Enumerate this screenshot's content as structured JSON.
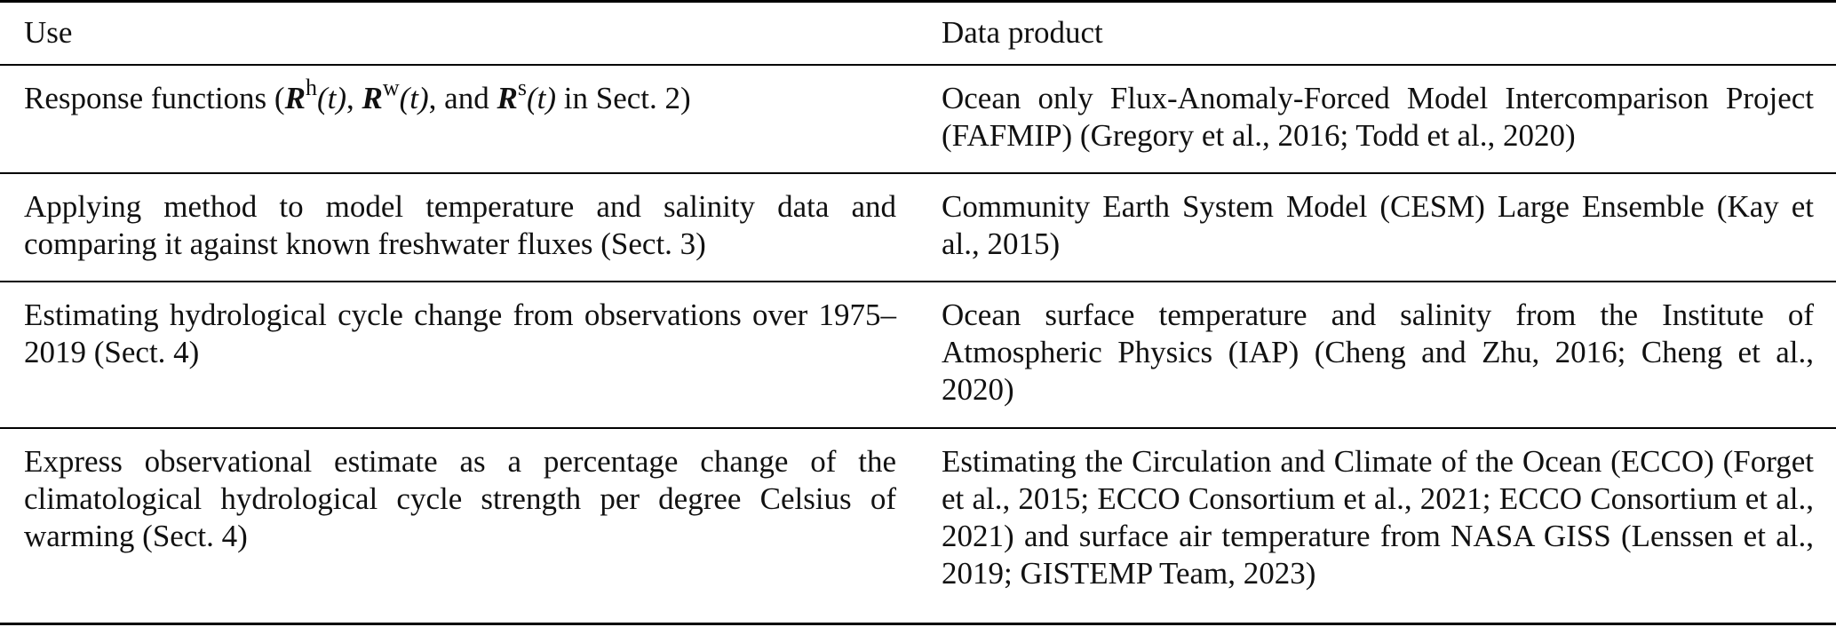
{
  "table": {
    "headers": {
      "use": "Use",
      "data_product": "Data product"
    },
    "rows": [
      {
        "use_prefix": "Response functions (",
        "use_r1_sup": "h",
        "use_r2_sup": "w",
        "use_r3_sup": "s",
        "use_r_symbol": "R",
        "use_t": "(t)",
        "use_sep1": ", ",
        "use_sep2": ", and ",
        "use_suffix": " in Sect. 2)",
        "data_product": "Ocean only Flux-Anomaly-Forced Model Intercomparison Project (FAFMIP) (Gregory et al., 2016; Todd et al., 2020)"
      },
      {
        "use": "Applying method to model temperature and salinity data and comparing it against known freshwater fluxes (Sect. 3)",
        "data_product": "Community Earth System Model (CESM) Large Ensemble (Kay et al., 2015)"
      },
      {
        "use": "Estimating hydrological cycle change from observations over 1975–2019 (Sect. 4)",
        "data_product": "Ocean surface temperature and salinity from the Institute of Atmospheric Physics (IAP) (Cheng and Zhu, 2016; Cheng et al., 2020)"
      },
      {
        "use": "Express observational estimate as a percentage change of the climatological hydrological cycle strength per degree Celsius of warming (Sect. 4)",
        "data_product": "Estimating the Circulation and Climate of the Ocean (ECCO) (Forget et al., 2015; ECCO Consortium et al., 2021; ECCO Consortium et al., 2021) and surface air temperature from NASA GISS (Lenssen et al., 2019; GISTEMP Team, 2023)"
      }
    ]
  }
}
